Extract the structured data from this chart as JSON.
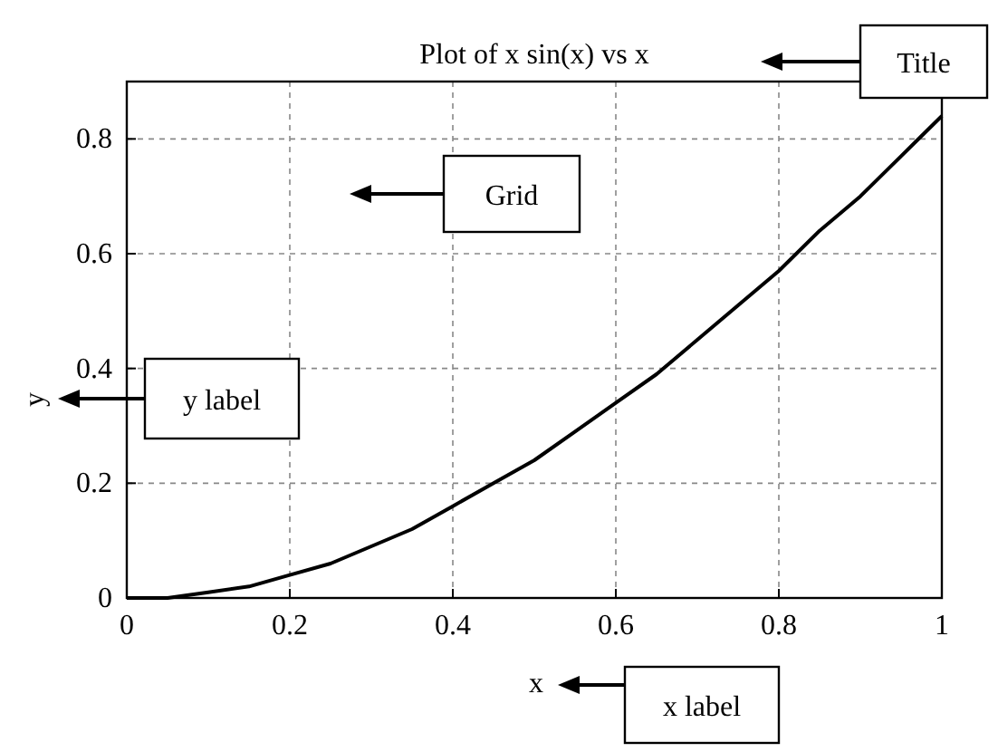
{
  "chart_data": {
    "type": "line",
    "title": "Plot of x sin(x) vs x",
    "xlabel": "x",
    "ylabel": "y",
    "x": [
      0,
      0.05,
      0.1,
      0.15,
      0.2,
      0.25,
      0.3,
      0.35,
      0.4,
      0.45,
      0.5,
      0.55,
      0.6,
      0.65,
      0.7,
      0.75,
      0.8,
      0.85,
      0.9,
      0.95,
      1
    ],
    "series": [
      {
        "color": "#000000",
        "values": [
          0,
          0,
          0.01,
          0.02,
          0.04,
          0.06,
          0.09,
          0.12,
          0.16,
          0.2,
          0.24,
          0.29,
          0.34,
          0.39,
          0.45,
          0.51,
          0.57,
          0.64,
          0.7,
          0.77,
          0.84
        ]
      }
    ],
    "xlim": [
      0,
      1
    ],
    "xticks": [
      0,
      0.2,
      0.4,
      0.6,
      0.8,
      1
    ],
    "ylim": [
      0,
      0.9
    ],
    "yticks": [
      0,
      0.2,
      0.4,
      0.6,
      0.8
    ],
    "grid": true,
    "marker": "none",
    "line_style": "solid",
    "annotations": [
      "Title",
      "Grid",
      "y label",
      "x label"
    ]
  }
}
